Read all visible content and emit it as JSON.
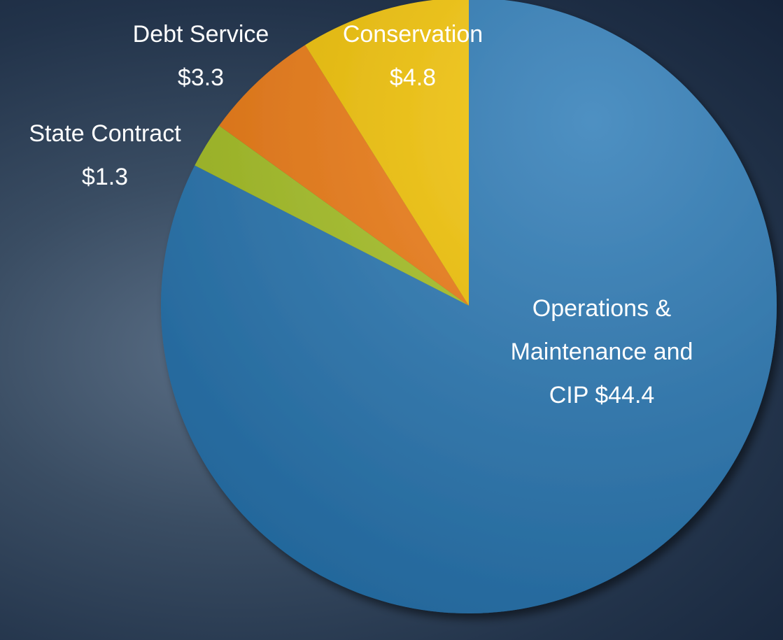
{
  "chart_data": {
    "type": "pie",
    "categories": [
      "Operations & Maintenance and CIP",
      "State Contract",
      "Debt Service",
      "Conservation"
    ],
    "values": [
      44.4,
      1.3,
      3.3,
      4.8
    ],
    "value_labels": [
      "$44.4",
      "$1.3",
      "$3.3",
      "$4.8"
    ],
    "colors": [
      "#2878b5",
      "#a9c423",
      "#f27c12",
      "#f6c502"
    ]
  }
}
